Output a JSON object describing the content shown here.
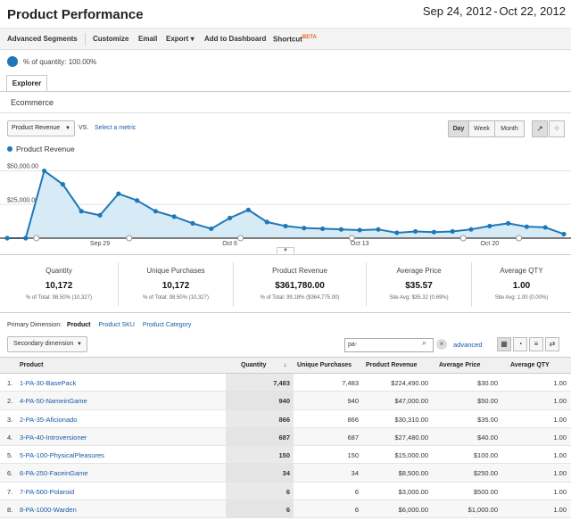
{
  "header": {
    "title": "Product Performance",
    "date_start": "Sep 24, 2012",
    "date_sep": "-",
    "date_end": "Oct 22, 2012"
  },
  "toolbar": {
    "advanced_segments": "Advanced Segments",
    "customize": "Customize",
    "email": "Email",
    "export": "Export",
    "add_to_dashboard": "Add to Dashboard",
    "shortcut": "Shortcut",
    "beta": "BETA"
  },
  "segment": {
    "label": "% of quantity: 100.00%"
  },
  "tabs": {
    "explorer": "Explorer",
    "ecommerce": "Ecommerce"
  },
  "controls": {
    "metric": "Product Revenue",
    "vs": "VS.",
    "select_metric": "Select a metric",
    "day": "Day",
    "week": "Week",
    "month": "Month"
  },
  "chart_data": {
    "type": "line",
    "series": [
      {
        "name": "Product Revenue",
        "values": [
          0,
          0,
          50000,
          40000,
          20000,
          17000,
          33000,
          28000,
          20000,
          16000,
          11000,
          7000,
          15000,
          21000,
          12000,
          9000,
          7500,
          7000,
          6500,
          6000,
          6500,
          4000,
          5000,
          4500,
          5000,
          6500,
          9000,
          11000,
          8500,
          8000,
          3000
        ]
      }
    ],
    "x_tick_labels": [
      "Sep 29",
      "Oct 6",
      "Oct 13",
      "Oct 20"
    ],
    "y_tick_labels": [
      "$50,000.00",
      "$25,000.00"
    ],
    "ylim": [
      0,
      55000
    ],
    "color": "#1e78b8",
    "fill": "#d6ebf5"
  },
  "scorecards": [
    {
      "label": "Quantity",
      "value": "10,172",
      "sub": "% of Total: 98.50% (10,327)"
    },
    {
      "label": "Unique Purchases",
      "value": "10,172",
      "sub": "% of Total: 98.50% (10,327)"
    },
    {
      "label": "Product Revenue",
      "value": "$361,780.00",
      "sub": "% of Total: 99.18% ($364,775.00)"
    },
    {
      "label": "Average Price",
      "value": "$35.57",
      "sub": "Site Avg: $35.32 (0.69%)"
    },
    {
      "label": "Average QTY",
      "value": "1.00",
      "sub": "Site Avg: 1.00 (0.00%)"
    }
  ],
  "dimensions": {
    "label": "Primary Dimension:",
    "selected": "Product",
    "sku": "Product SKU",
    "category": "Product Category"
  },
  "filter": {
    "secondary": "Secondary dimension",
    "search_value": "pa-",
    "advanced": "advanced"
  },
  "table": {
    "headers": {
      "product": "Product",
      "quantity": "Quantity",
      "unique": "Unique Purchases",
      "revenue": "Product Revenue",
      "price": "Average Price",
      "qty": "Average QTY"
    },
    "rows": [
      {
        "idx": "1.",
        "product": "1-PA-30-BasePack",
        "quantity": "7,483",
        "unique": "7,483",
        "revenue": "$224,490.00",
        "price": "$30.00",
        "qty": "1.00"
      },
      {
        "idx": "2.",
        "product": "4-PA-50-NameinGame",
        "quantity": "940",
        "unique": "940",
        "revenue": "$47,000.00",
        "price": "$50.00",
        "qty": "1.00"
      },
      {
        "idx": "3.",
        "product": "2-PA-35-Aficionado",
        "quantity": "866",
        "unique": "866",
        "revenue": "$30,310.00",
        "price": "$35.00",
        "qty": "1.00"
      },
      {
        "idx": "4.",
        "product": "3-PA-40-Introversioner",
        "quantity": "687",
        "unique": "687",
        "revenue": "$27,480.00",
        "price": "$40.00",
        "qty": "1.00"
      },
      {
        "idx": "5.",
        "product": "5-PA-100-PhysicalPleasures",
        "quantity": "150",
        "unique": "150",
        "revenue": "$15,000.00",
        "price": "$100.00",
        "qty": "1.00"
      },
      {
        "idx": "6.",
        "product": "6-PA-250-FaceinGame",
        "quantity": "34",
        "unique": "34",
        "revenue": "$8,500.00",
        "price": "$250.00",
        "qty": "1.00"
      },
      {
        "idx": "7.",
        "product": "7-PA-500-Polaroid",
        "quantity": "6",
        "unique": "6",
        "revenue": "$3,000.00",
        "price": "$500.00",
        "qty": "1.00"
      },
      {
        "idx": "8.",
        "product": "8-PA-1000-Warden",
        "quantity": "6",
        "unique": "6",
        "revenue": "$6,000.00",
        "price": "$1,000.00",
        "qty": "1.00"
      }
    ]
  }
}
